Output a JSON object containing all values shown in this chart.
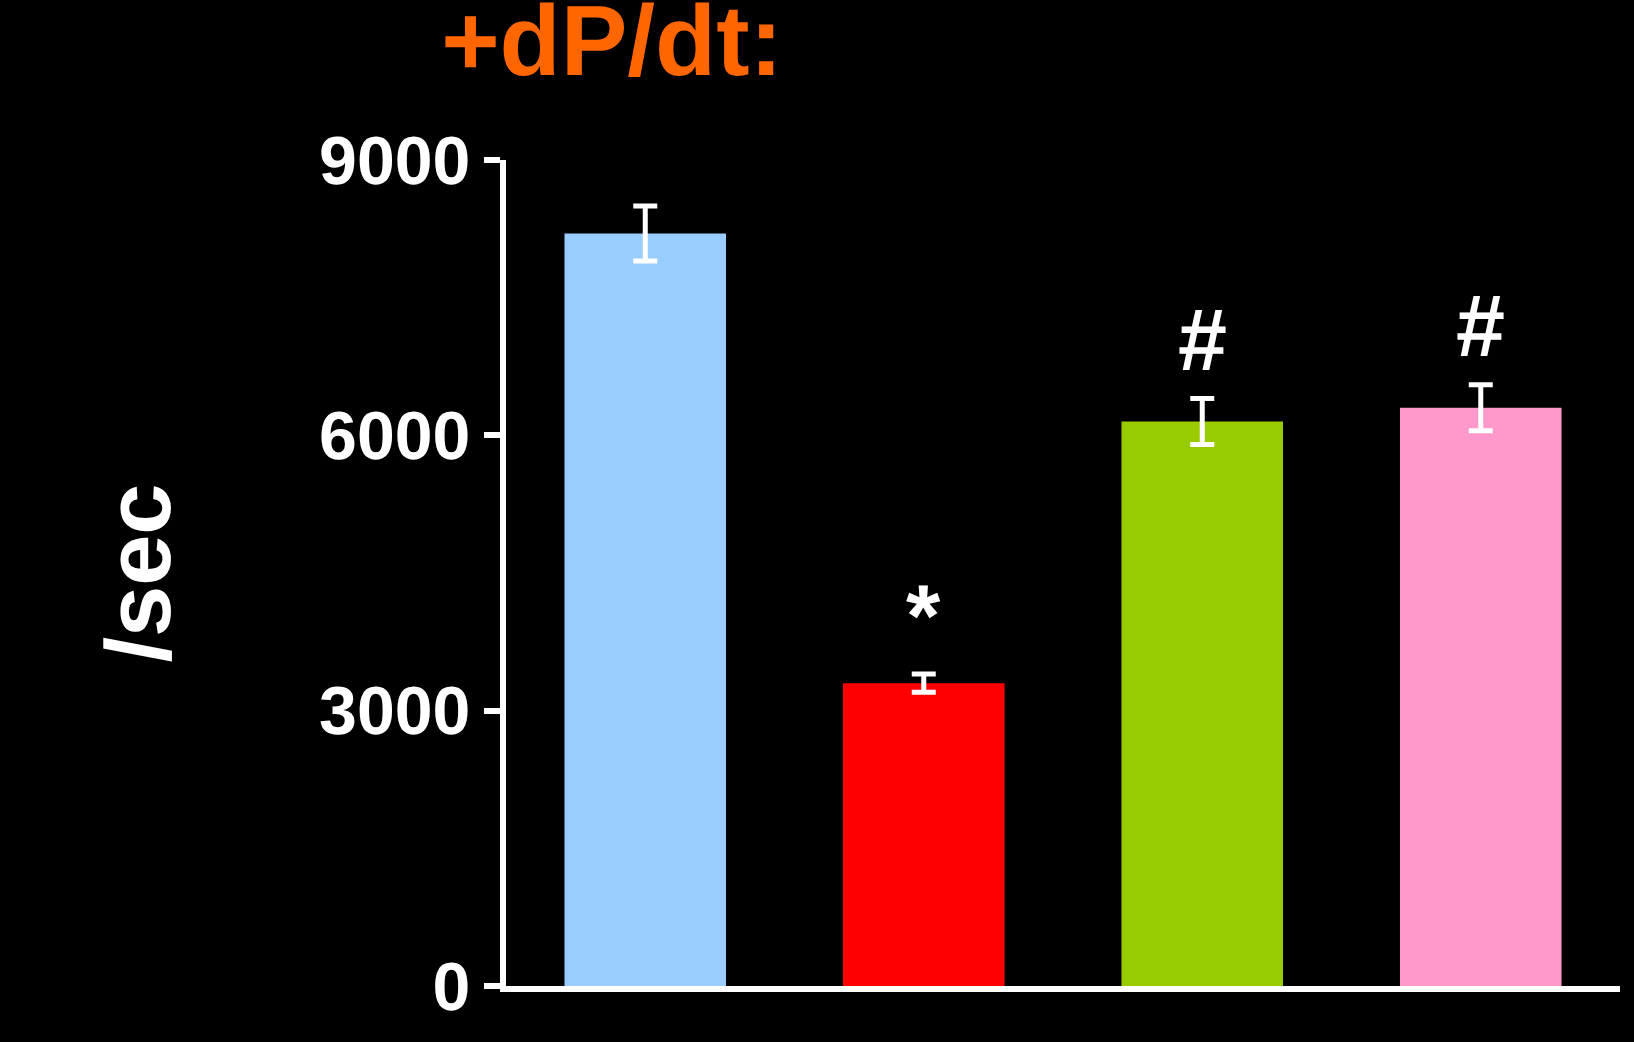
{
  "chart_data": {
    "type": "bar",
    "title": "+dP/dt:",
    "ylabel": "/sec",
    "categories": [
      null,
      null,
      null,
      null
    ],
    "values": [
      8200,
      3300,
      6150,
      6300
    ],
    "colors": [
      "#99ccff",
      "#ff0000",
      "#99cc00",
      "#ff99cc"
    ],
    "errors": [
      300,
      100,
      250,
      250
    ],
    "value_labels": [
      null,
      "*",
      "#",
      "#"
    ],
    "ylim": [
      0,
      9000
    ],
    "yticks": [
      0,
      3000,
      6000,
      9000
    ],
    "grid": false
  }
}
